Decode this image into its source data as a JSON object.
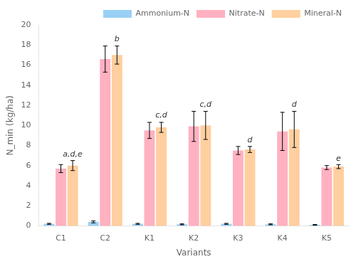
{
  "chart_data": {
    "type": "bar",
    "categories": [
      "C1",
      "C2",
      "K1",
      "K2",
      "K3",
      "K4",
      "K5"
    ],
    "series": [
      {
        "name": "Ammonium-N",
        "values": [
          0.2,
          0.4,
          0.2,
          0.15,
          0.2,
          0.15,
          0.1
        ],
        "errors": [
          0.05,
          0.1,
          0.05,
          0.05,
          0.05,
          0.05,
          0.03
        ]
      },
      {
        "name": "Nitrate-N",
        "values": [
          5.7,
          16.6,
          9.5,
          9.9,
          7.5,
          9.4,
          5.8
        ],
        "errors": [
          0.4,
          1.3,
          0.8,
          1.5,
          0.4,
          1.9,
          0.2
        ]
      },
      {
        "name": "Mineral-N",
        "values": [
          6.0,
          17.0,
          9.8,
          10.0,
          7.6,
          9.6,
          5.9
        ],
        "errors": [
          0.5,
          0.9,
          0.5,
          1.4,
          0.3,
          1.8,
          0.2
        ]
      }
    ],
    "annotations": [
      {
        "category": "C1",
        "series": "Mineral-N",
        "y": 6.7,
        "text": "a,d,e"
      },
      {
        "category": "C2",
        "series": "Mineral-N",
        "y": 18.2,
        "text": "b"
      },
      {
        "category": "K1",
        "series": "Mineral-N",
        "y": 10.6,
        "text": "c,d"
      },
      {
        "category": "K2",
        "series": "Mineral-N",
        "y": 11.7,
        "text": "c,d"
      },
      {
        "category": "K3",
        "series": "Mineral-N",
        "y": 8.1,
        "text": "d"
      },
      {
        "category": "K4",
        "series": "Mineral-N",
        "y": 11.7,
        "text": "d"
      },
      {
        "category": "K5",
        "series": "Mineral-N",
        "y": 6.3,
        "text": "e"
      }
    ],
    "xlabel": "Variants",
    "ylabel": "N_min (kg/ha)",
    "ylim": [
      0,
      20
    ],
    "yticks": [
      0,
      2,
      4,
      6,
      8,
      10,
      12,
      14,
      16,
      18,
      20
    ],
    "grid": false,
    "legend": "upper right"
  }
}
